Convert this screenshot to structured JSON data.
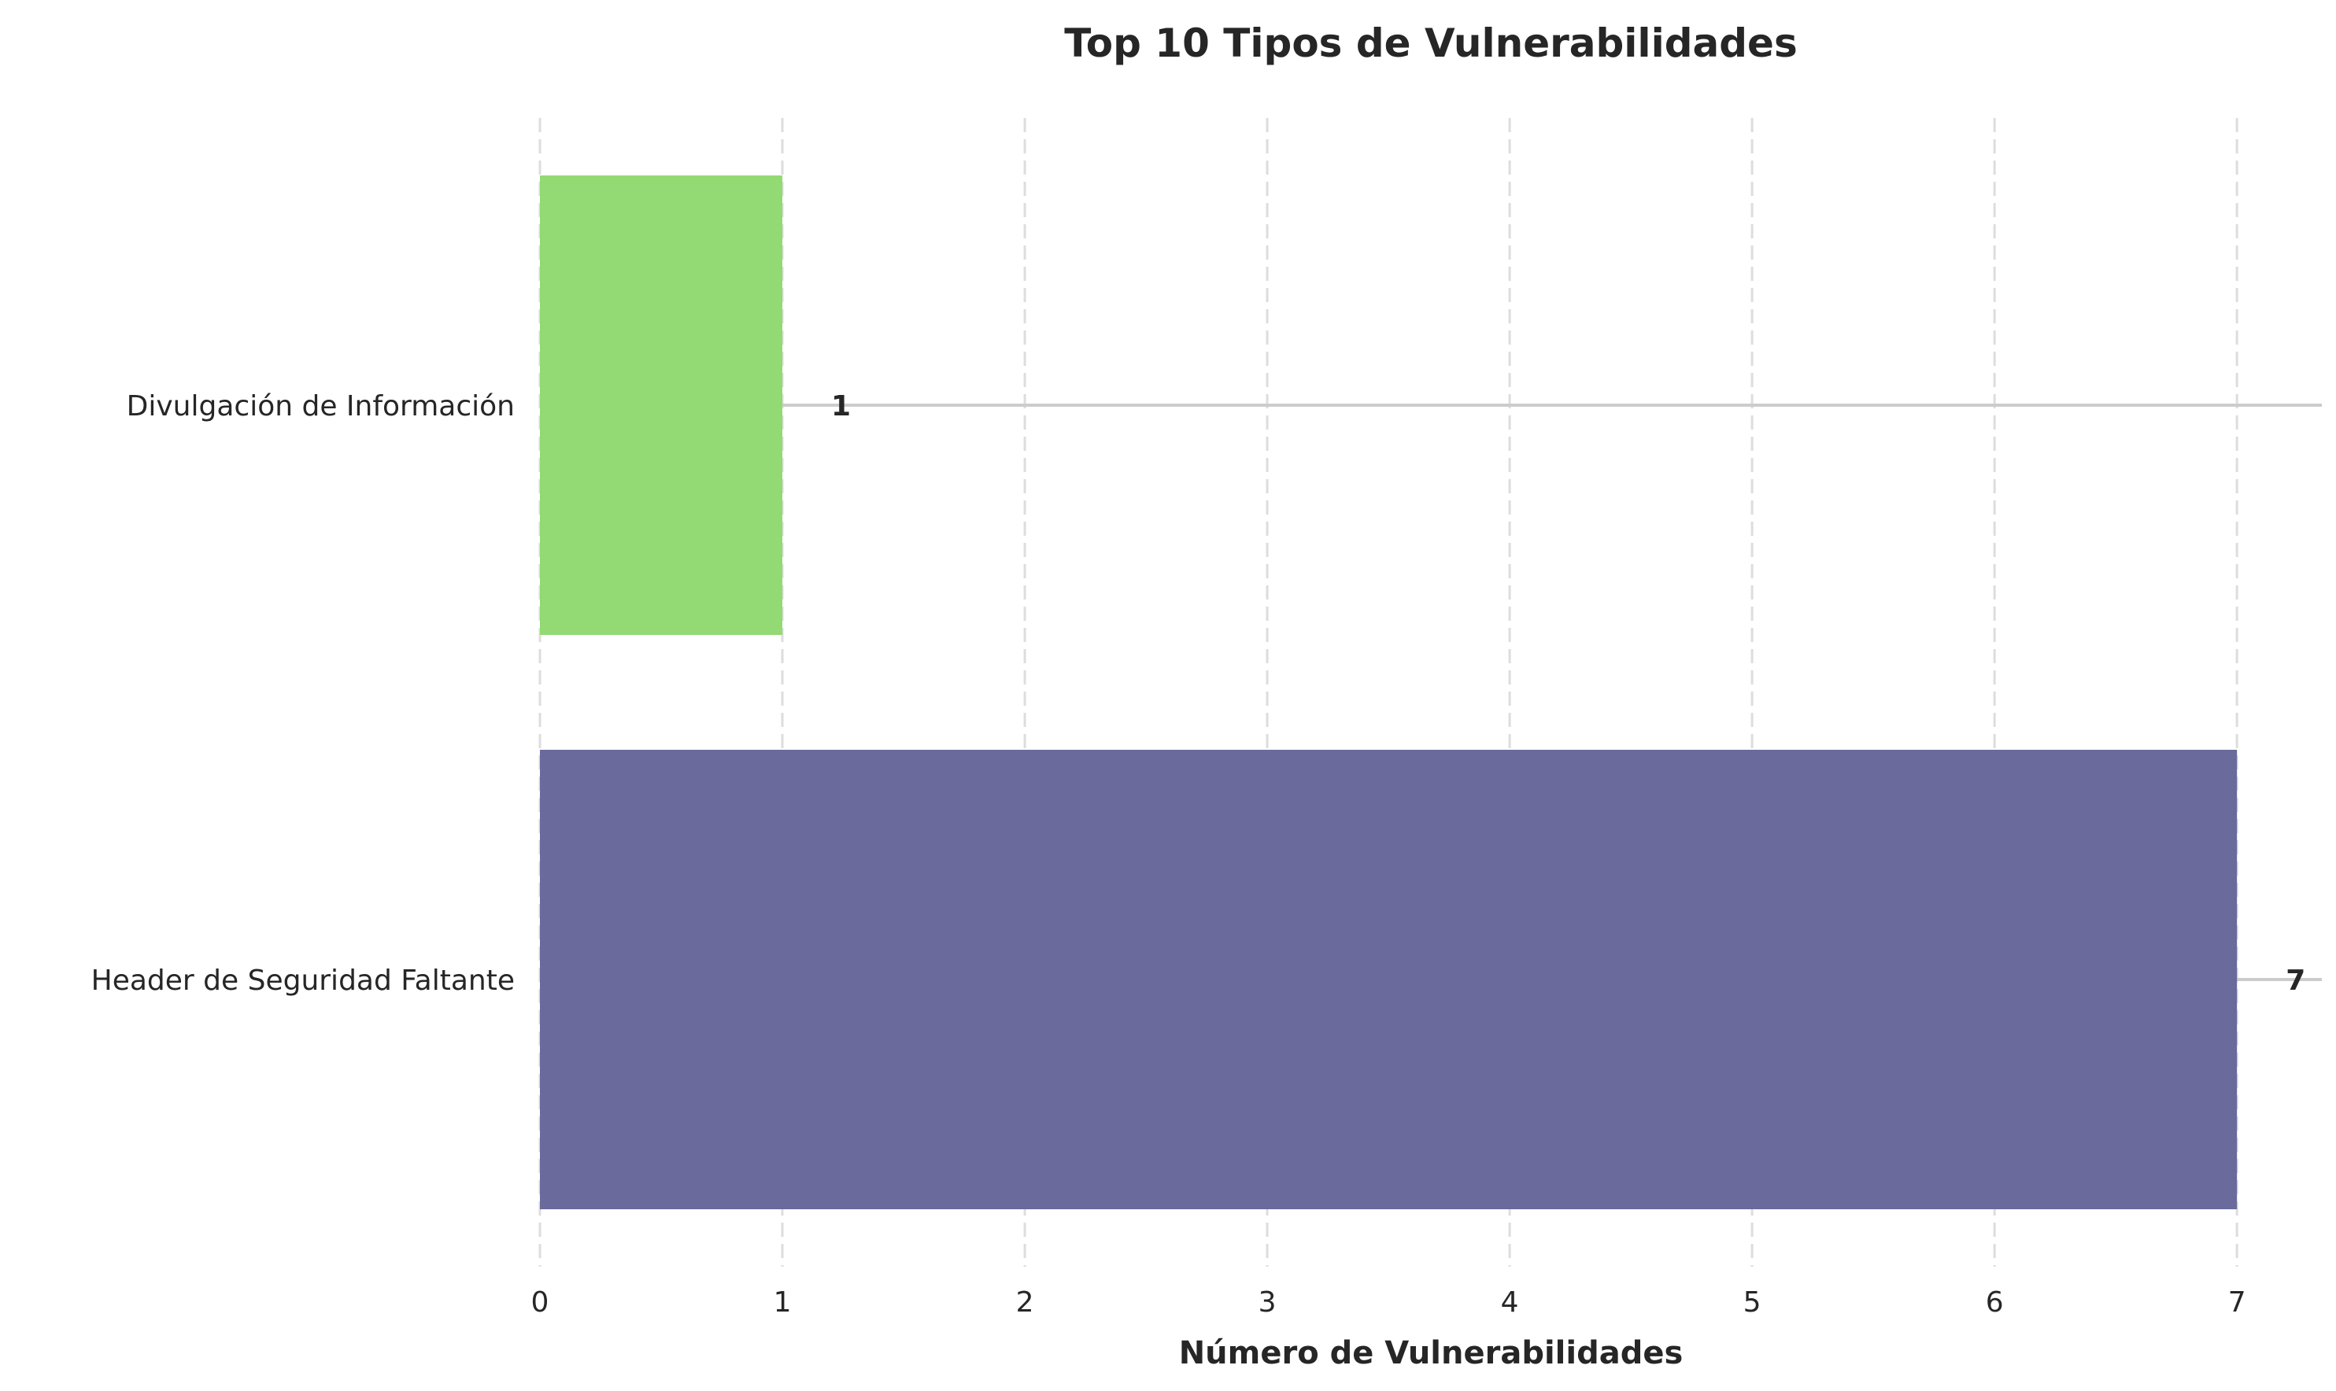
{
  "chart_data": {
    "type": "bar",
    "orientation": "horizontal",
    "title": "Top 10 Tipos de Vulnerabilidades",
    "xlabel": "Número de Vulnerabilidades",
    "ylabel": "",
    "categories": [
      "Divulgación de Información",
      "Header de Seguridad Faltante"
    ],
    "values": [
      1,
      7
    ],
    "colors": [
      "#93d974",
      "#6a6a9d"
    ],
    "xlim": [
      0,
      7.35
    ],
    "xticks": [
      0,
      1,
      2,
      3,
      4,
      5,
      6,
      7
    ],
    "grid": "x-dashed",
    "legend": "none"
  }
}
